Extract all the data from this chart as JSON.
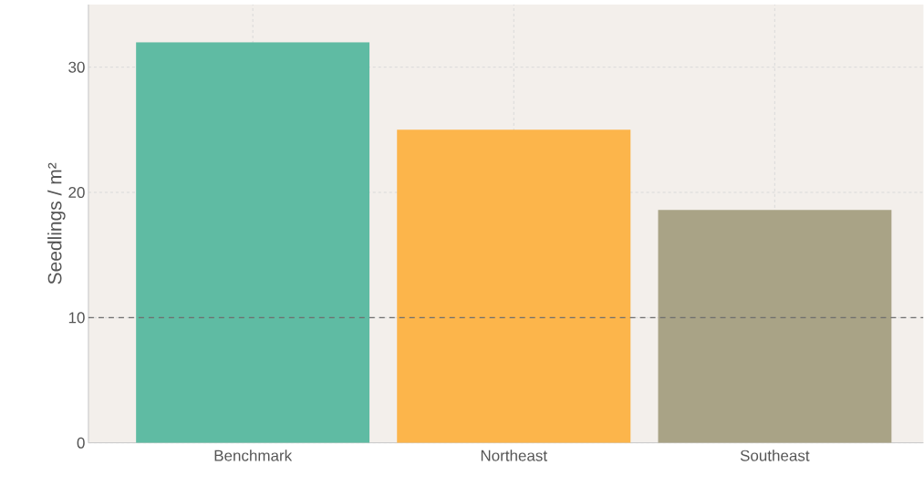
{
  "chart_data": {
    "type": "bar",
    "ylabel": "Seedlings / m²",
    "categories": [
      "Benchmark",
      "Northeast",
      "Southeast"
    ],
    "values": [
      32,
      25,
      18.6
    ],
    "colors": [
      "#5fbba3",
      "#fcb54b",
      "#a9a386"
    ],
    "ylim": [
      0,
      35
    ],
    "yticks": [
      0,
      10,
      20,
      30
    ],
    "grid": true,
    "ref_lines": [
      {
        "axis": "y",
        "value": 10,
        "color": "#6e6e6e",
        "line_style": "dashed"
      }
    ]
  }
}
